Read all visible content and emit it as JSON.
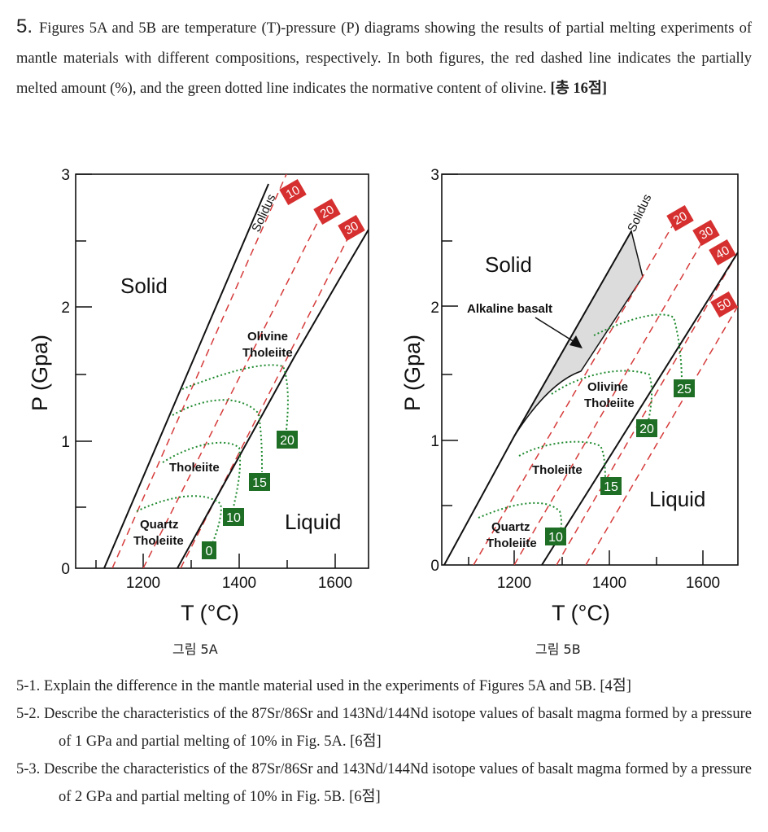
{
  "intro": {
    "number": "5.",
    "text": "Figures 5A and 5B are temperature (T)-pressure (P) diagrams showing the results of partial melting experiments of mantle materials with different compositions, respectively. In both figures, the red dashed line indicates the partially melted amount (%), and the green dotted line indicates the normative content of olivine.",
    "points": "[총 16점]"
  },
  "figA": {
    "caption": "그림 5A",
    "x_ticks": [
      "1200",
      "1400",
      "1600"
    ],
    "y_ticks": [
      "0",
      "1",
      "2",
      "3"
    ],
    "xlabel": "T (°C)",
    "ylabel": "P (Gpa)",
    "solidus": "Solidus",
    "regions": {
      "solid": "Solid",
      "liquid": "Liquid"
    },
    "rocks": {
      "olivine1": "Olivine",
      "olivine2": "Tholeiite",
      "tholeiite": "Tholeiite",
      "quartz1": "Quartz",
      "quartz2": "Tholeiite"
    },
    "melt_labels": [
      "10",
      "20",
      "30"
    ],
    "olivine_labels": [
      "0",
      "10",
      "15",
      "20"
    ]
  },
  "figB": {
    "caption": "그림 5B",
    "x_ticks": [
      "1200",
      "1400",
      "1600"
    ],
    "y_ticks": [
      "0",
      "1",
      "2",
      "3"
    ],
    "xlabel": "T (°C)",
    "ylabel": "P (Gpa)",
    "solidus": "Solidus",
    "regions": {
      "solid": "Solid",
      "liquid": "Liquid"
    },
    "rocks": {
      "alkaline": "Alkaline basalt",
      "olivine1": "Olivine",
      "olivine2": "Tholeiite",
      "tholeiite": "Tholeiite",
      "quartz1": "Quartz",
      "quartz2": "Tholeiite"
    },
    "melt_labels": [
      "20",
      "30",
      "40",
      "50"
    ],
    "olivine_labels": [
      "10",
      "15",
      "20",
      "25"
    ]
  },
  "questions": [
    "5-1. Explain the difference in the mantle material used in the experiments of Figures 5A and 5B. [4점]",
    "5-2. Describe the characteristics of the 87Sr/86Sr and 143Nd/144Nd isotope values of basalt magma formed by a pressure of 1 GPa and partial melting of 10% in Fig. 5A. [6점]",
    "5-3. Describe the characteristics of the 87Sr/86Sr and 143Nd/144Nd isotope values of basalt magma formed by a pressure of 2 GPa and partial melting of 10% in Fig. 5B. [6점]"
  ],
  "colors": {
    "melt_line": "#d63b3b",
    "melt_box": "#d62f2f",
    "olivine_line": "#1e8a2e",
    "olivine_box": "#1f6e25",
    "alkaline_fill": "#dcdcdc"
  }
}
